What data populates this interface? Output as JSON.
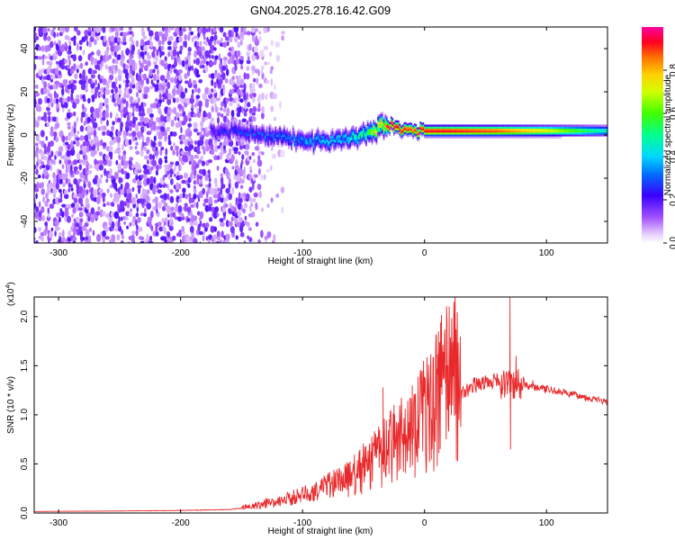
{
  "title": "GN04.2025.278.16.42.G09",
  "chart_data": [
    {
      "type": "heatmap",
      "xlabel": "Height of straight line (km)",
      "ylabel": "Frequency (Hz)",
      "xlim": [
        -320,
        150
      ],
      "ylim": [
        -50,
        50
      ],
      "xticks": [
        -300,
        -200,
        -100,
        0,
        100
      ],
      "xtick_labels": [
        "-300",
        "-200",
        "-100",
        "0",
        "100"
      ],
      "yticks": [
        -40,
        -20,
        0,
        20,
        40
      ],
      "ytick_labels": [
        "-40",
        "-20",
        "0",
        "20",
        "40"
      ],
      "colorbar": {
        "label": "Normalized spectral amplitude",
        "range": [
          0,
          1
        ],
        "ticks": [
          0,
          0.2,
          0.4,
          0.6,
          0.8
        ],
        "tick_labels": [
          "0.0",
          "0.2",
          "0.4",
          "0.6",
          "0.8"
        ]
      },
      "ridge": {
        "x": [
          -170,
          -150,
          -130,
          -110,
          -90,
          -70,
          -50,
          -35,
          -25,
          -10,
          0,
          20,
          60,
          100,
          150
        ],
        "freq": [
          2,
          1,
          0,
          -2,
          -3,
          -2,
          0,
          4,
          4,
          2,
          2,
          2,
          2,
          2,
          2
        ],
        "amplitude": [
          0.25,
          0.3,
          0.35,
          0.35,
          0.4,
          0.45,
          0.55,
          0.95,
          0.98,
          0.9,
          0.95,
          0.95,
          0.9,
          0.75,
          0.45
        ]
      },
      "noise_region_x": [
        -320,
        -130
      ]
    },
    {
      "type": "line",
      "xlabel": "Height of straight line (km)",
      "ylabel": "SNR (10 * v/v)",
      "scale_label": "(x10",
      "scale_exp": "4",
      "scale_close": ")",
      "xlim": [
        -320,
        150
      ],
      "ylim": [
        0,
        22000
      ],
      "xticks": [
        -300,
        -200,
        -100,
        0,
        100
      ],
      "xtick_labels": [
        "-300",
        "-200",
        "-100",
        "0",
        "100"
      ],
      "yticks": [
        0,
        5000,
        10000,
        15000,
        20000
      ],
      "ytick_labels": [
        "0.0",
        "0.5",
        "1.0",
        "1.5",
        "2.0"
      ],
      "color": "#e8282a",
      "series": [
        {
          "name": "SNR",
          "x": [
            -320,
            -250,
            -200,
            -160,
            -140,
            -120,
            -100,
            -80,
            -60,
            -40,
            -20,
            0,
            20,
            40,
            55,
            70,
            80,
            100,
            120,
            150
          ],
          "y": [
            150,
            200,
            250,
            350,
            600,
            1000,
            1500,
            2200,
            3000,
            4500,
            6000,
            8000,
            11000,
            12800,
            13200,
            13200,
            13000,
            12500,
            12000,
            11200
          ]
        }
      ],
      "spikes": [
        {
          "x": 70,
          "y": 22000
        },
        {
          "x": 70.5,
          "y": 6500
        },
        {
          "x": 75,
          "y": 16000
        },
        {
          "x": 10,
          "y": 14700
        },
        {
          "x": -34,
          "y": 12800
        },
        {
          "x": -25,
          "y": 11000
        },
        {
          "x": -10,
          "y": 13000
        }
      ]
    }
  ]
}
